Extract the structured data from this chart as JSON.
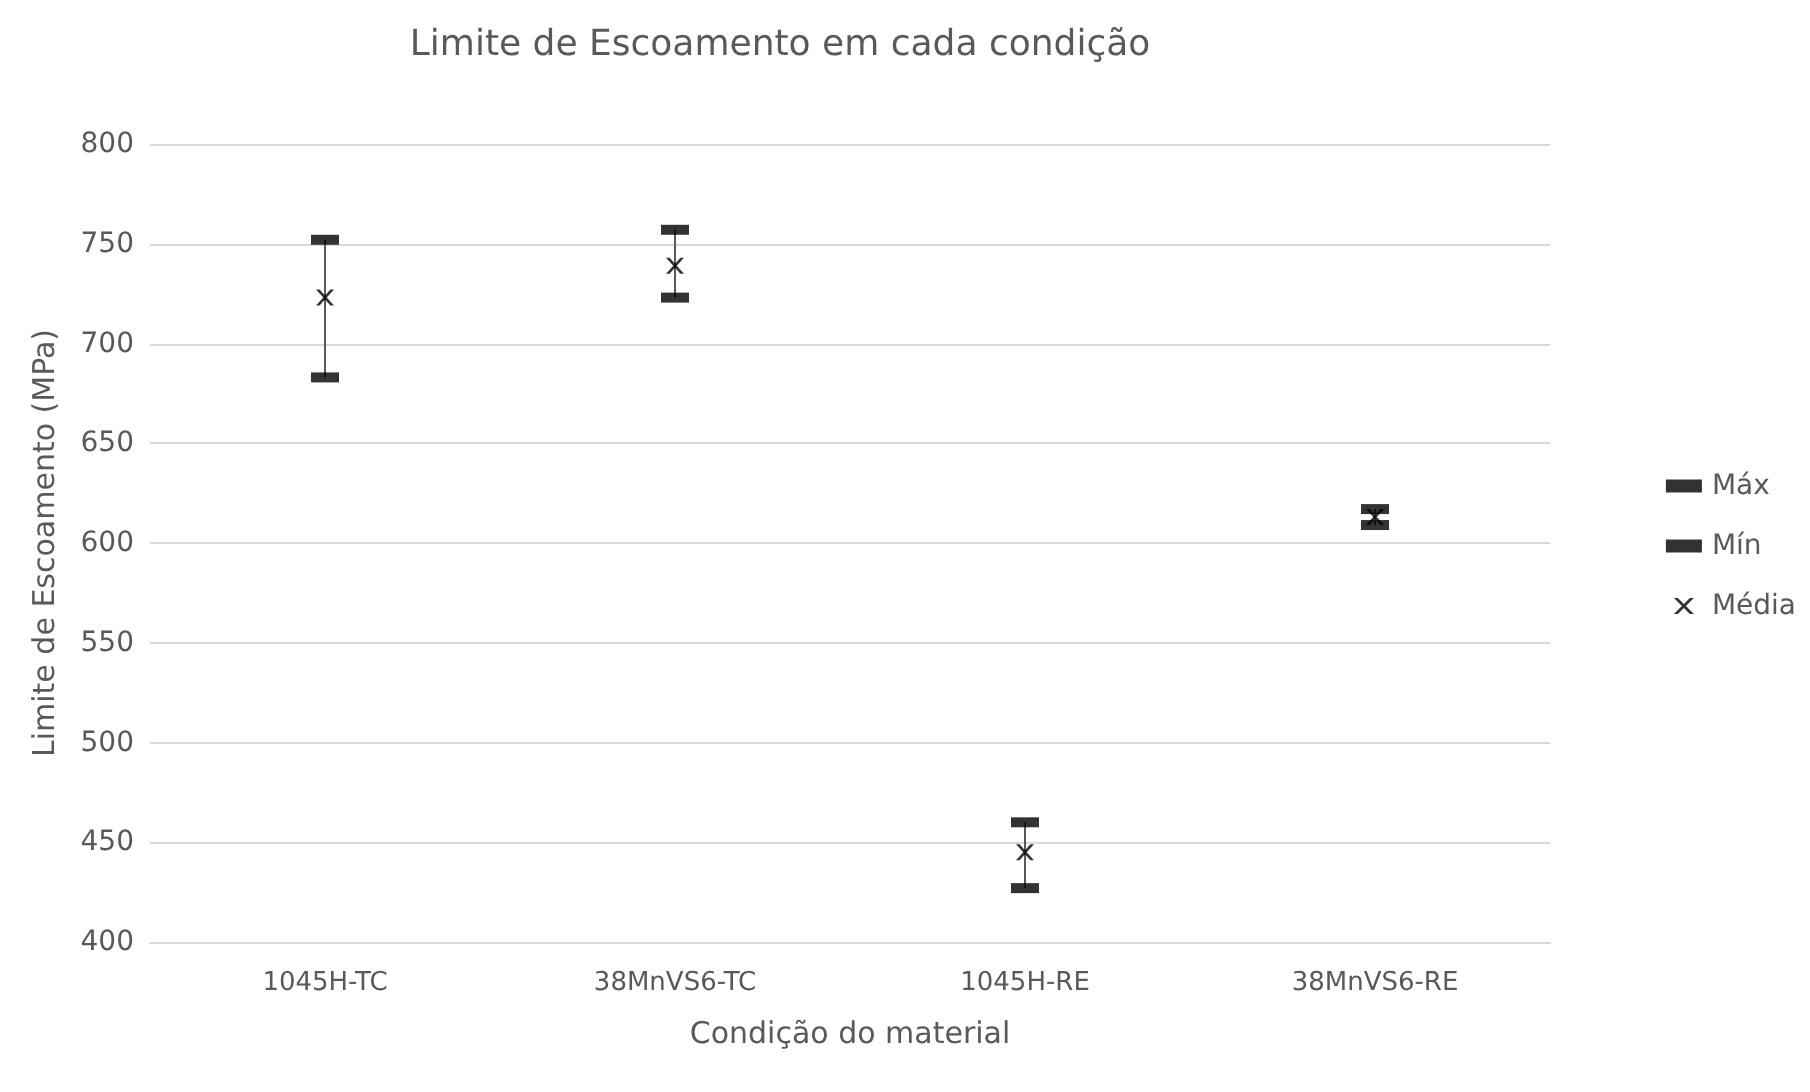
{
  "chart_data": {
    "type": "scatter",
    "title": "Limite de Escoamento em cada condição",
    "xlabel": "Condição do material",
    "ylabel": "Limite de Escoamento (MPa)",
    "categories": [
      "1045H-TC",
      "38MnVS6-TC",
      "1045H-RE",
      "38MnVS6-RE"
    ],
    "series": [
      {
        "name": "Máx",
        "color": "#000000",
        "marker": "square",
        "values": [
          752,
          757,
          460,
          617
        ]
      },
      {
        "name": "Mín",
        "color": "#000000",
        "marker": "square",
        "values": [
          683,
          723,
          427,
          609
        ]
      },
      {
        "name": "Média",
        "color": "#000000",
        "marker": "cross",
        "values": [
          723,
          739,
          445,
          613
        ]
      }
    ],
    "ylim": [
      400,
      800
    ],
    "yticks": [
      400,
      450,
      500,
      550,
      600,
      650,
      700,
      750,
      800
    ],
    "grid": "y",
    "legend": "right"
  }
}
